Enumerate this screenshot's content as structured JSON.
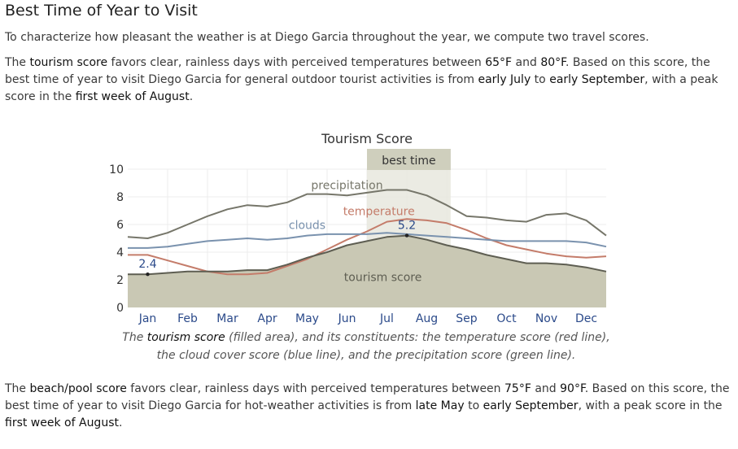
{
  "heading": "Best Time of Year to Visit",
  "intro": "To characterize how pleasant the weather is at Diego Garcia throughout the year, we compute two travel scores.",
  "tourism_paragraph": {
    "t1": "The ",
    "score_name": "tourism score",
    "t2": " favors clear, rainless days with perceived temperatures between ",
    "temp_low": "65°F",
    "t3": " and ",
    "temp_high": "80°F",
    "t4": ". Based on this score, the best time of year to visit Diego Garcia for general outdoor tourist activities is from ",
    "start": "early July",
    "t5": " to ",
    "end": "early September",
    "t6": ", with a peak score in the ",
    "peak": "first week of August",
    "t7": "."
  },
  "caption": {
    "c1": "The ",
    "score_name": "tourism score",
    "c2": " (filled area), and its constituents: the temperature score (red line), the cloud cover score (blue line), and the precipitation score (green line)."
  },
  "beach_paragraph": {
    "t1": "The ",
    "score_name": "beach/pool score",
    "t2": " favors clear, rainless days with perceived temperatures between ",
    "temp_low": "75°F",
    "t3": " and ",
    "temp_high": "90°F",
    "t4": ". Based on this score, the best time of year to visit Diego Garcia for hot-weather activities is from ",
    "start": "late May",
    "t5": " to ",
    "end": "early September",
    "t6": ", with a peak score in the ",
    "peak": "first week of August",
    "t7": "."
  },
  "chart_data": {
    "type": "area",
    "title": "Tourism Score",
    "ylim": [
      0,
      10
    ],
    "yticks": [
      0,
      2,
      4,
      6,
      8,
      10
    ],
    "xlim": [
      0,
      12
    ],
    "month_labels": [
      "Jan",
      "Feb",
      "Mar",
      "Apr",
      "May",
      "Jun",
      "Jul",
      "Aug",
      "Sep",
      "Oct",
      "Nov",
      "Dec"
    ],
    "grid": true,
    "best_time": {
      "label": "best time",
      "start_month": 6.0,
      "end_month": 8.1
    },
    "x": [
      0,
      0.5,
      1,
      1.5,
      2,
      2.5,
      3,
      3.5,
      4,
      4.5,
      5,
      5.5,
      6,
      6.5,
      7,
      7.5,
      8,
      8.5,
      9,
      9.5,
      10,
      10.5,
      11,
      11.5,
      12
    ],
    "series": [
      {
        "name": "precipitation",
        "color": "#76766a",
        "values": [
          5.1,
          5.0,
          5.4,
          6.0,
          6.6,
          7.1,
          7.4,
          7.3,
          7.6,
          8.2,
          8.2,
          8.1,
          8.3,
          8.5,
          8.5,
          8.1,
          7.4,
          6.6,
          6.5,
          6.3,
          6.2,
          6.7,
          6.8,
          6.3,
          5.2
        ]
      },
      {
        "name": "temperature",
        "color": "#c47c6a",
        "values": [
          3.8,
          3.8,
          3.4,
          3.0,
          2.6,
          2.4,
          2.4,
          2.5,
          3.0,
          3.5,
          4.2,
          4.9,
          5.5,
          6.2,
          6.4,
          6.3,
          6.1,
          5.6,
          5.0,
          4.5,
          4.2,
          3.9,
          3.7,
          3.6,
          3.7
        ]
      },
      {
        "name": "clouds",
        "color": "#7a92ae",
        "values": [
          4.3,
          4.3,
          4.4,
          4.6,
          4.8,
          4.9,
          5.0,
          4.9,
          5.0,
          5.2,
          5.3,
          5.3,
          5.3,
          5.4,
          5.3,
          5.2,
          5.1,
          5.0,
          4.9,
          4.8,
          4.8,
          4.8,
          4.8,
          4.7,
          4.4
        ]
      },
      {
        "name": "tourism score",
        "color": "#5e5e52",
        "fill": "#c9c8b4",
        "values": [
          2.4,
          2.4,
          2.5,
          2.6,
          2.6,
          2.6,
          2.7,
          2.7,
          3.1,
          3.6,
          4.0,
          4.5,
          4.8,
          5.1,
          5.2,
          4.9,
          4.5,
          4.2,
          3.8,
          3.5,
          3.2,
          3.2,
          3.1,
          2.9,
          2.6
        ]
      }
    ],
    "annotations": [
      {
        "label": "2.4",
        "month": 0.5,
        "value": 2.4
      },
      {
        "label": "5.2",
        "month": 7.0,
        "value": 5.2
      }
    ]
  }
}
